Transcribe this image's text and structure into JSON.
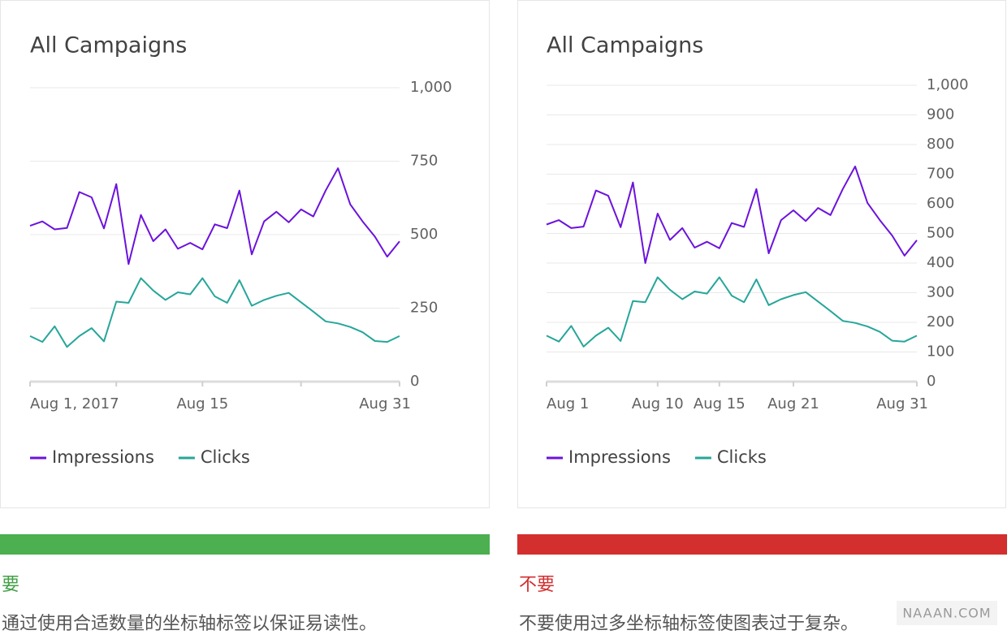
{
  "chart_data": [
    {
      "type": "line",
      "title": "All Campaigns",
      "x": [
        1,
        2,
        3,
        4,
        5,
        6,
        7,
        8,
        9,
        10,
        11,
        12,
        13,
        14,
        15,
        16,
        17,
        18,
        19,
        20,
        21,
        22,
        23,
        24,
        25,
        26,
        27,
        28,
        29,
        30,
        31
      ],
      "xlim": [
        1,
        31
      ],
      "xticks": [
        {
          "value": 1,
          "label": "Aug 1, 2017"
        },
        {
          "value": 15,
          "label": "Aug 15"
        },
        {
          "value": 31,
          "label": "Aug 31"
        }
      ],
      "xminorticks": [
        8,
        23
      ],
      "ylim": [
        0,
        1000
      ],
      "yticks": [
        0,
        250,
        500,
        750,
        {
          "value": 1000,
          "label": "1,000"
        }
      ],
      "grid": true,
      "series": [
        {
          "name": "Impressions",
          "color": "#6c12dc",
          "values": [
            530,
            545,
            518,
            523,
            645,
            627,
            521,
            672,
            400,
            567,
            478,
            518,
            452,
            472,
            450,
            535,
            522,
            650,
            433,
            545,
            578,
            542,
            586,
            562,
            650,
            726,
            603,
            545,
            493,
            425,
            477
          ]
        },
        {
          "name": "Clicks",
          "color": "#26a69a",
          "values": [
            155,
            135,
            188,
            118,
            155,
            182,
            137,
            272,
            268,
            352,
            310,
            278,
            304,
            297,
            352,
            290,
            268,
            345,
            258,
            278,
            292,
            302,
            270,
            238,
            205,
            198,
            186,
            168,
            138,
            135,
            155
          ]
        }
      ]
    },
    {
      "type": "line",
      "title": "All Campaigns",
      "x": [
        1,
        2,
        3,
        4,
        5,
        6,
        7,
        8,
        9,
        10,
        11,
        12,
        13,
        14,
        15,
        16,
        17,
        18,
        19,
        20,
        21,
        22,
        23,
        24,
        25,
        26,
        27,
        28,
        29,
        30,
        31
      ],
      "xlim": [
        1,
        31
      ],
      "xticks": [
        {
          "value": 1,
          "label": "Aug 1"
        },
        {
          "value": 10,
          "label": "Aug 10"
        },
        {
          "value": 15,
          "label": "Aug 15"
        },
        {
          "value": 21,
          "label": "Aug 21"
        },
        {
          "value": 31,
          "label": "Aug 31"
        }
      ],
      "ylim": [
        0,
        1000
      ],
      "yticks": [
        0,
        100,
        200,
        300,
        400,
        500,
        600,
        700,
        800,
        900,
        {
          "value": 1000,
          "label": "1,000"
        }
      ],
      "grid": true,
      "series": [
        {
          "name": "Impressions",
          "color": "#6c12dc",
          "values": [
            530,
            545,
            518,
            523,
            645,
            627,
            521,
            672,
            400,
            567,
            478,
            518,
            452,
            472,
            450,
            535,
            522,
            650,
            433,
            545,
            578,
            542,
            586,
            562,
            650,
            726,
            603,
            545,
            493,
            425,
            477
          ]
        },
        {
          "name": "Clicks",
          "color": "#26a69a",
          "values": [
            155,
            135,
            188,
            118,
            155,
            182,
            137,
            272,
            268,
            352,
            310,
            278,
            304,
            297,
            352,
            290,
            268,
            345,
            258,
            278,
            292,
            302,
            270,
            238,
            205,
            198,
            186,
            168,
            138,
            135,
            155
          ]
        }
      ]
    }
  ],
  "panels": [
    {
      "label": "要",
      "text": "通过使用合适数量的坐标轴标签以保证易读性。"
    },
    {
      "label": "不要",
      "text": "不要使用过多坐标轴标签使图表过于复杂。"
    }
  ],
  "watermark": "NAAAN.COM"
}
